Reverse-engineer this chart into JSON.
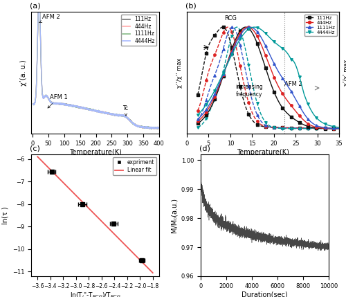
{
  "fig_size": [
    5.0,
    4.29
  ],
  "dpi": 100,
  "panel_a": {
    "label": "(a)",
    "xlabel": "Temperature(K)",
    "ylabel": "χ’(a. u.)",
    "xlim": [
      -5,
      400
    ],
    "xticks": [
      0,
      50,
      100,
      150,
      200,
      250,
      300,
      350,
      400
    ],
    "frequencies": [
      "111Hz",
      "444Hz",
      "1111Hz",
      "4444Hz"
    ],
    "colors": [
      "#777777",
      "#ffaaaa",
      "#88bb88",
      "#aabbff"
    ]
  },
  "panel_b": {
    "label": "(b)",
    "xlabel": "Temperature(K)",
    "ylabel_left": "χ’’/χ’’ max",
    "ylabel_right": "χ’/χ’ max",
    "xlim": [
      0,
      35
    ],
    "xticks": [
      0,
      5,
      10,
      15,
      20,
      25,
      30,
      35
    ],
    "freq_labels": [
      "111Hz",
      "444Hz",
      "1111Hz",
      "4444Hz"
    ],
    "colors": [
      "#111111",
      "#dd2222",
      "#3355cc",
      "#009999"
    ]
  },
  "panel_c": {
    "label": "(c)",
    "xlabel": "ln(T_i\"-T_RCG)/T_RCG",
    "ylabel": "ln(τ )",
    "xlim": [
      -3.7,
      -1.7
    ],
    "ylim": [
      -11.2,
      -5.8
    ],
    "xticks": [
      -3.6,
      -3.4,
      -3.2,
      -3.0,
      -2.8,
      -2.6,
      -2.4,
      -2.2,
      -2.0,
      -1.8
    ],
    "yticks": [
      -11,
      -10,
      -9,
      -8,
      -7,
      -6
    ],
    "data_x": [
      -3.38,
      -2.9,
      -2.41,
      -1.97
    ],
    "data_y": [
      -6.55,
      -8.02,
      -8.88,
      -10.48
    ],
    "xerr": [
      0.06,
      0.07,
      0.06,
      0.04
    ],
    "fit_x": [
      -3.6,
      -1.8
    ],
    "fit_y": [
      -5.9,
      -11.05
    ]
  },
  "panel_d": {
    "label": "(d)",
    "xlabel": "Duration(sec)",
    "ylabel": "M/M₀(a.u.)",
    "xlim": [
      0,
      10000
    ],
    "ylim": [
      0.96,
      1.002
    ],
    "xticks": [
      0,
      2000,
      4000,
      6000,
      8000,
      10000
    ],
    "yticks": [
      0.96,
      0.97,
      0.98,
      0.99,
      1.0
    ]
  }
}
